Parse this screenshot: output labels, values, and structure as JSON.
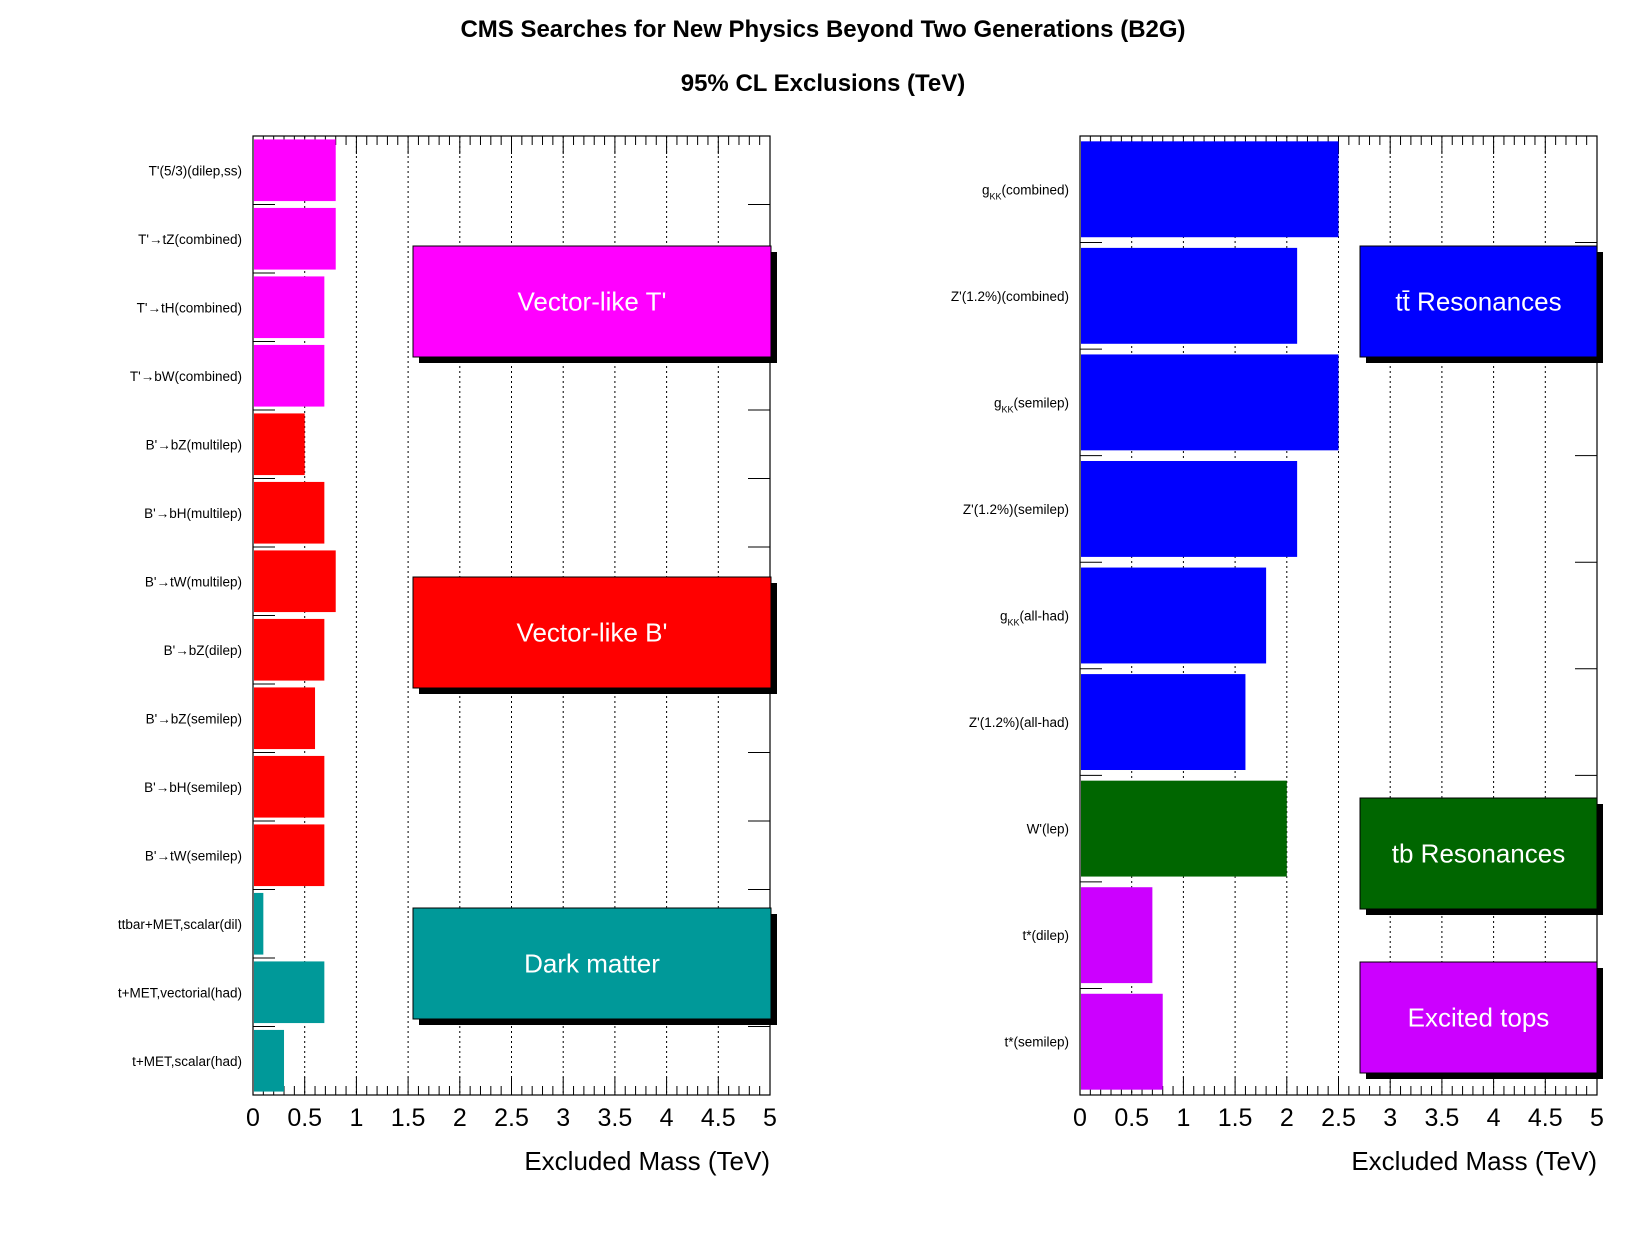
{
  "title": "CMS Searches for New Physics Beyond Two Generations (B2G)",
  "subtitle": "95% CL Exclusions (TeV)",
  "chart_data": [
    {
      "type": "bar",
      "orientation": "horizontal",
      "xlabel": "Excluded Mass (TeV)",
      "xlim": [
        0,
        5
      ],
      "xticks": [
        "0",
        "0.5",
        "1",
        "1.5",
        "2",
        "2.5",
        "3",
        "3.5",
        "4",
        "4.5",
        "5"
      ],
      "grid": "vertical dotted",
      "categories": [
        "T'(5/3)(dilep,ss)",
        "T'→tZ(combined)",
        "T'→tH(combined)",
        "T'→bW(combined)",
        "B'→bZ(multilep)",
        "B'→bH(multilep)",
        "B'→tW(multilep)",
        "B'→bZ(dilep)",
        "B'→bZ(semilep)",
        "B'→bH(semilep)",
        "B'→tW(semilep)",
        "ttbar+MET,scalar(dil)",
        "t+MET,vectorial(had)",
        "t+MET,scalar(had)"
      ],
      "values": [
        0.8,
        0.8,
        0.69,
        0.69,
        0.5,
        0.69,
        0.8,
        0.69,
        0.6,
        0.69,
        0.69,
        0.1,
        0.69,
        0.3
      ],
      "colors": [
        "#ff00ff",
        "#ff00ff",
        "#ff00ff",
        "#ff00ff",
        "#ff0000",
        "#ff0000",
        "#ff0000",
        "#ff0000",
        "#ff0000",
        "#ff0000",
        "#ff0000",
        "#009999",
        "#009999",
        "#009999"
      ],
      "legend": [
        {
          "label": "Vector-like T'",
          "color": "#ff00ff"
        },
        {
          "label": "Vector-like B'",
          "color": "#ff0000"
        },
        {
          "label": "Dark matter",
          "color": "#009999"
        }
      ]
    },
    {
      "type": "bar",
      "orientation": "horizontal",
      "xlabel": "Excluded Mass (TeV)",
      "xlim": [
        0,
        5
      ],
      "xticks": [
        "0",
        "0.5",
        "1",
        "1.5",
        "2",
        "2.5",
        "3",
        "3.5",
        "4",
        "4.5",
        "5"
      ],
      "grid": "vertical dotted",
      "categories": [
        {
          "main": "g",
          "sub": "KK",
          "rest": "(combined)"
        },
        {
          "main": "Z'(1.2%)(combined)",
          "sub": "",
          "rest": ""
        },
        {
          "main": "g",
          "sub": "KK",
          "rest": "(semilep)"
        },
        {
          "main": "Z'(1.2%)(semilep)",
          "sub": "",
          "rest": ""
        },
        {
          "main": "g",
          "sub": "KK",
          "rest": "(all-had)"
        },
        {
          "main": "Z'(1.2%)(all-had)",
          "sub": "",
          "rest": ""
        },
        {
          "main": "W'(lep)",
          "sub": "",
          "rest": ""
        },
        {
          "main": "t*(dilep)",
          "sub": "",
          "rest": ""
        },
        {
          "main": "t*(semilep)",
          "sub": "",
          "rest": ""
        }
      ],
      "values": [
        2.5,
        2.1,
        2.5,
        2.1,
        1.8,
        1.6,
        2.0,
        0.7,
        0.8
      ],
      "colors": [
        "#0000ff",
        "#0000ff",
        "#0000ff",
        "#0000ff",
        "#0000ff",
        "#0000ff",
        "#006600",
        "#cc00ff",
        "#cc00ff"
      ],
      "legend": [
        {
          "label": "tt̄ Resonances",
          "color": "#0000ff"
        },
        {
          "label": "tb Resonances",
          "color": "#006600"
        },
        {
          "label": "Excited tops",
          "color": "#cc00ff"
        }
      ]
    }
  ]
}
